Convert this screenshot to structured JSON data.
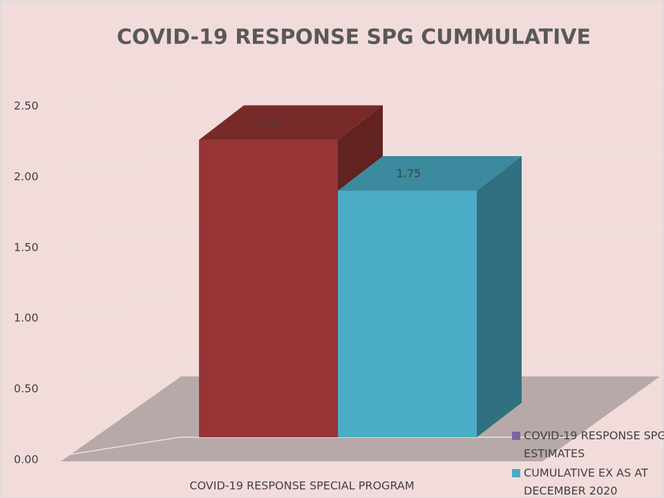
{
  "chart_data": {
    "type": "bar3d",
    "title": "COVID-19 RESPONSE SPG CUMMULATIVE",
    "categories": [
      "COVID-19 RESPONSE SPECIAL PROGRAM"
    ],
    "series": [
      {
        "name": "COVID-19 RESPONSE SPG ESTIMATES",
        "color": "#963533",
        "legend_color": "#8064a2",
        "values": [
          2.11
        ]
      },
      {
        "name": "CUMULATIVE EX AS AT DECEMBER 2020",
        "color": "#4bacc6",
        "legend_color": "#4bacc6",
        "values": [
          1.75
        ]
      }
    ],
    "ylim": [
      0,
      2.5
    ],
    "yticks": [
      {
        "value": 0,
        "label": "0.00"
      },
      {
        "value": 0.5,
        "label": "0.50"
      },
      {
        "value": 1,
        "label": "1.00"
      },
      {
        "value": 1.5,
        "label": "1.50"
      },
      {
        "value": 2,
        "label": "2.00"
      },
      {
        "value": 2.5,
        "label": "2.50"
      }
    ],
    "grid": true,
    "legend": "bottom-right"
  }
}
